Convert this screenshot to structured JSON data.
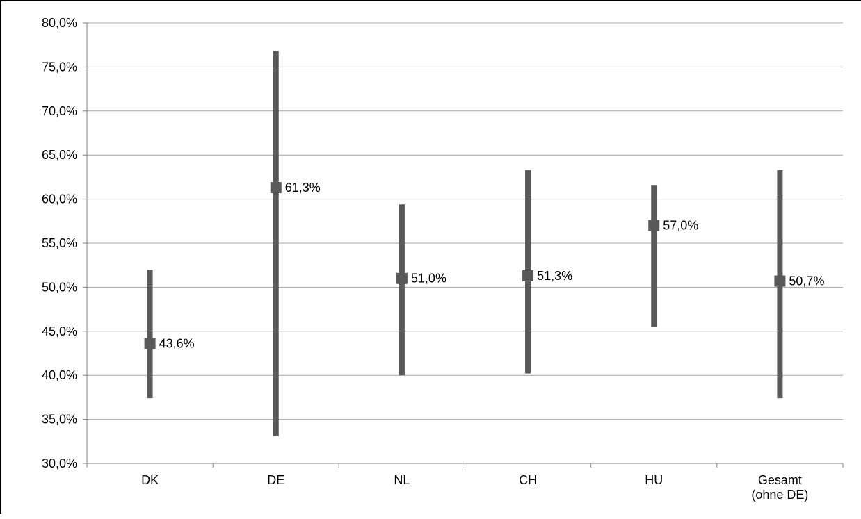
{
  "chart_data": {
    "type": "scatter",
    "subtype": "error-bar",
    "title": "",
    "xlabel": "",
    "ylabel": "",
    "ylim": [
      30.0,
      80.0
    ],
    "y_ticks": [
      "30,0%",
      "35,0%",
      "40,0%",
      "45,0%",
      "50,0%",
      "55,0%",
      "60,0%",
      "65,0%",
      "70,0%",
      "75,0%",
      "80,0%"
    ],
    "grid": true,
    "legend": "none",
    "categories": [
      {
        "label_lines": [
          "DK"
        ]
      },
      {
        "label_lines": [
          "DE"
        ]
      },
      {
        "label_lines": [
          "NL"
        ]
      },
      {
        "label_lines": [
          "CH"
        ]
      },
      {
        "label_lines": [
          "HU"
        ]
      },
      {
        "label_lines": [
          "Gesamt",
          "(ohne DE)"
        ]
      }
    ],
    "series": [
      {
        "values": [
          43.6,
          61.3,
          51.0,
          51.3,
          57.0,
          50.7
        ],
        "value_labels": [
          "43,6%",
          "61,3%",
          "51,0%",
          "51,3%",
          "57,0%",
          "50,7%"
        ],
        "lower": [
          37.4,
          33.1,
          40.0,
          40.2,
          45.5,
          37.4
        ],
        "upper": [
          52.0,
          76.8,
          59.4,
          63.3,
          61.6,
          63.3
        ]
      }
    ],
    "colors": {
      "marker": "#595959",
      "bar": "#595959",
      "grid": "#a6a6a6",
      "axis": "#808080"
    }
  }
}
